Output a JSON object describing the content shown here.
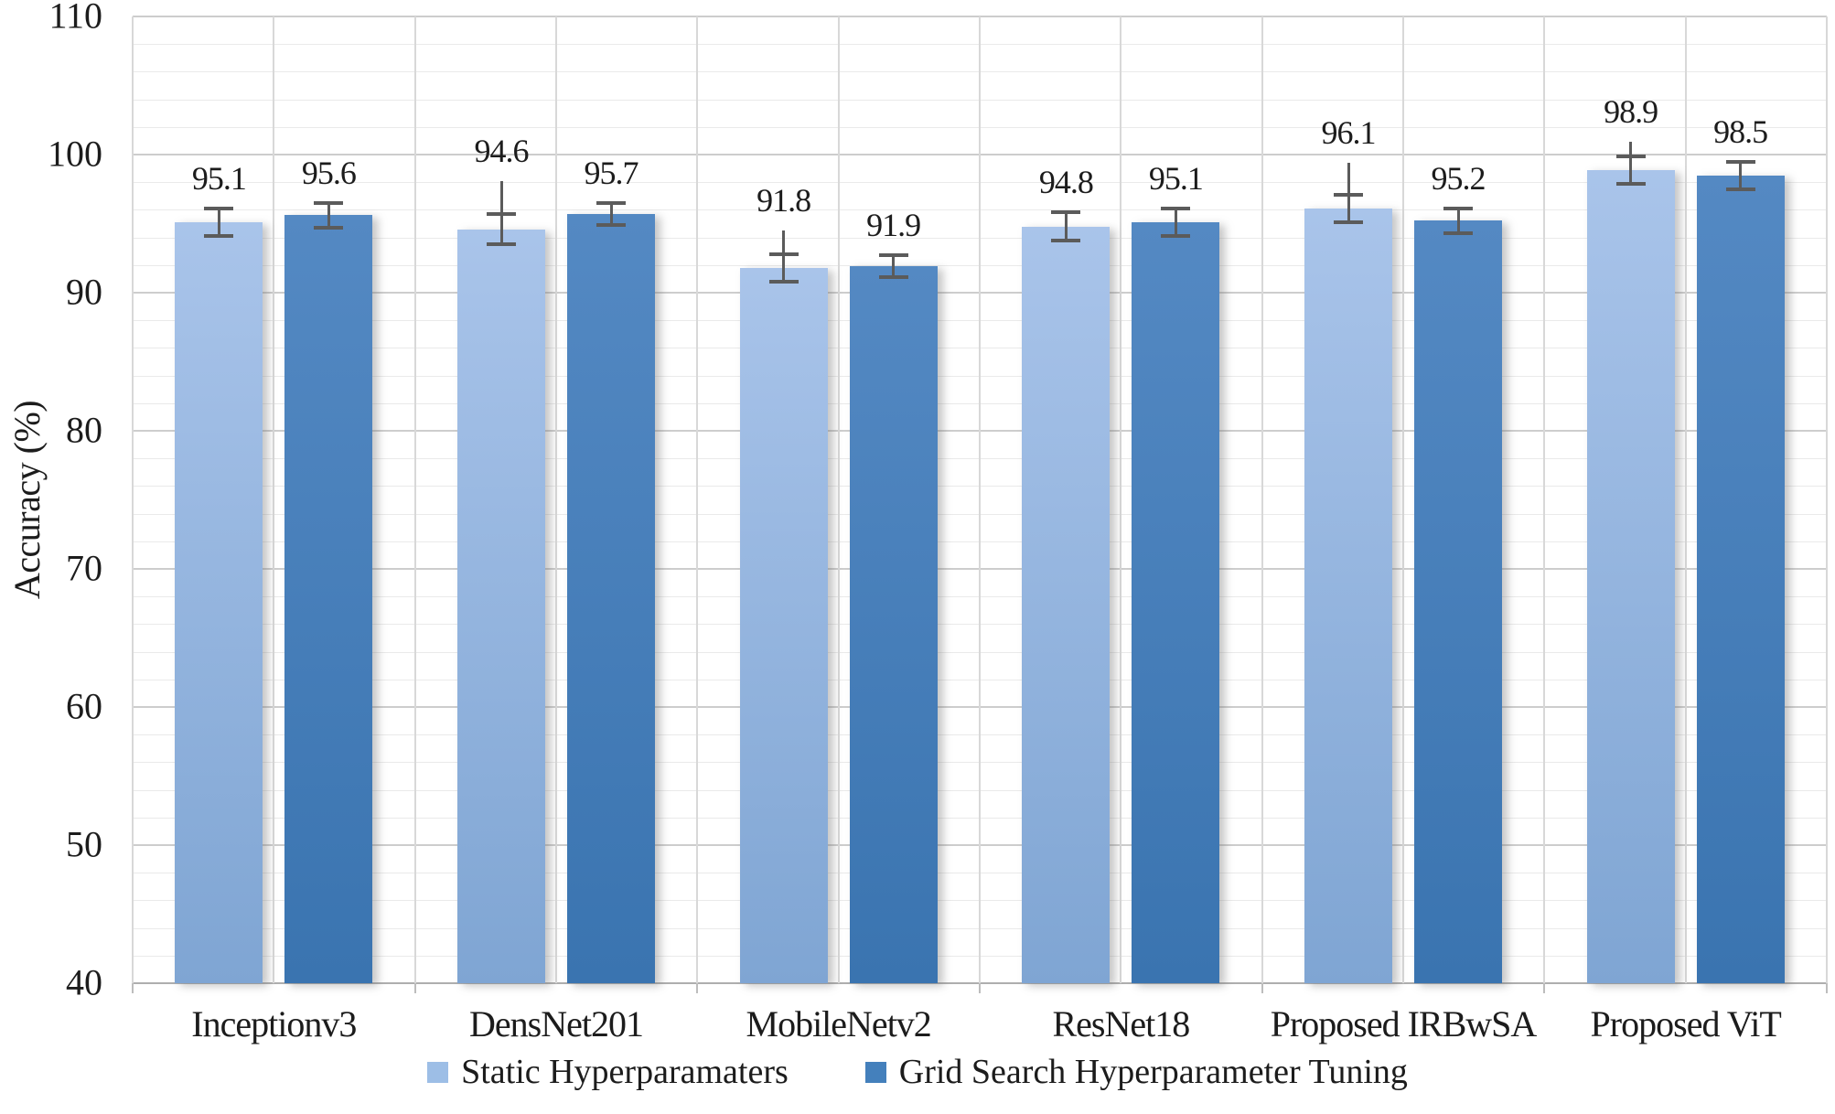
{
  "figure": {
    "background": "#FFFFFF",
    "text_color": "#1C1C1C"
  },
  "chart_data": {
    "type": "bar",
    "title": "",
    "xlabel": "",
    "ylabel": "Accuracy (%)",
    "ylim": [
      40,
      110
    ],
    "y_major_step": 10,
    "y_minor_step": 2,
    "y_ticks": [
      40,
      50,
      60,
      70,
      80,
      90,
      100,
      110
    ],
    "grid": true,
    "legend_position": "bottom",
    "categories": [
      "Inceptionv3",
      "DensNet201",
      "MobileNetv2",
      "ResNet18",
      "Proposed IRBwSA",
      "Proposed ViT"
    ],
    "series": [
      {
        "name": "Static Hyperparamaters",
        "color_top": "#A9C4EA",
        "color_bottom": "#7FA5D3",
        "legend_color": "#9DBEE6",
        "values": [
          95.1,
          94.6,
          91.8,
          94.8,
          96.1,
          98.9
        ],
        "data_labels": [
          "95.1",
          "94.6",
          "91.8",
          "94.8",
          "96.1",
          "98.9"
        ],
        "error": [
          1.0,
          1.1,
          1.0,
          1.0,
          1.0,
          1.0
        ],
        "error_tail_up": [
          0,
          2.4,
          1.7,
          0,
          2.3,
          1.0
        ]
      },
      {
        "name": "Grid Search Hyperparameter Tuning",
        "color_top": "#5489C3",
        "color_bottom": "#3A74B0",
        "legend_color": "#4480BC",
        "values": [
          95.6,
          95.7,
          91.9,
          95.1,
          95.2,
          98.5
        ],
        "data_labels": [
          "95.6",
          "95.7",
          "91.9",
          "95.1",
          "95.2",
          "98.5"
        ],
        "error": [
          0.9,
          0.8,
          0.8,
          1.0,
          0.9,
          1.0
        ],
        "error_tail_up": [
          0,
          0,
          0,
          0,
          0,
          0
        ]
      }
    ],
    "error_bar_color": "#5B5B5B"
  }
}
